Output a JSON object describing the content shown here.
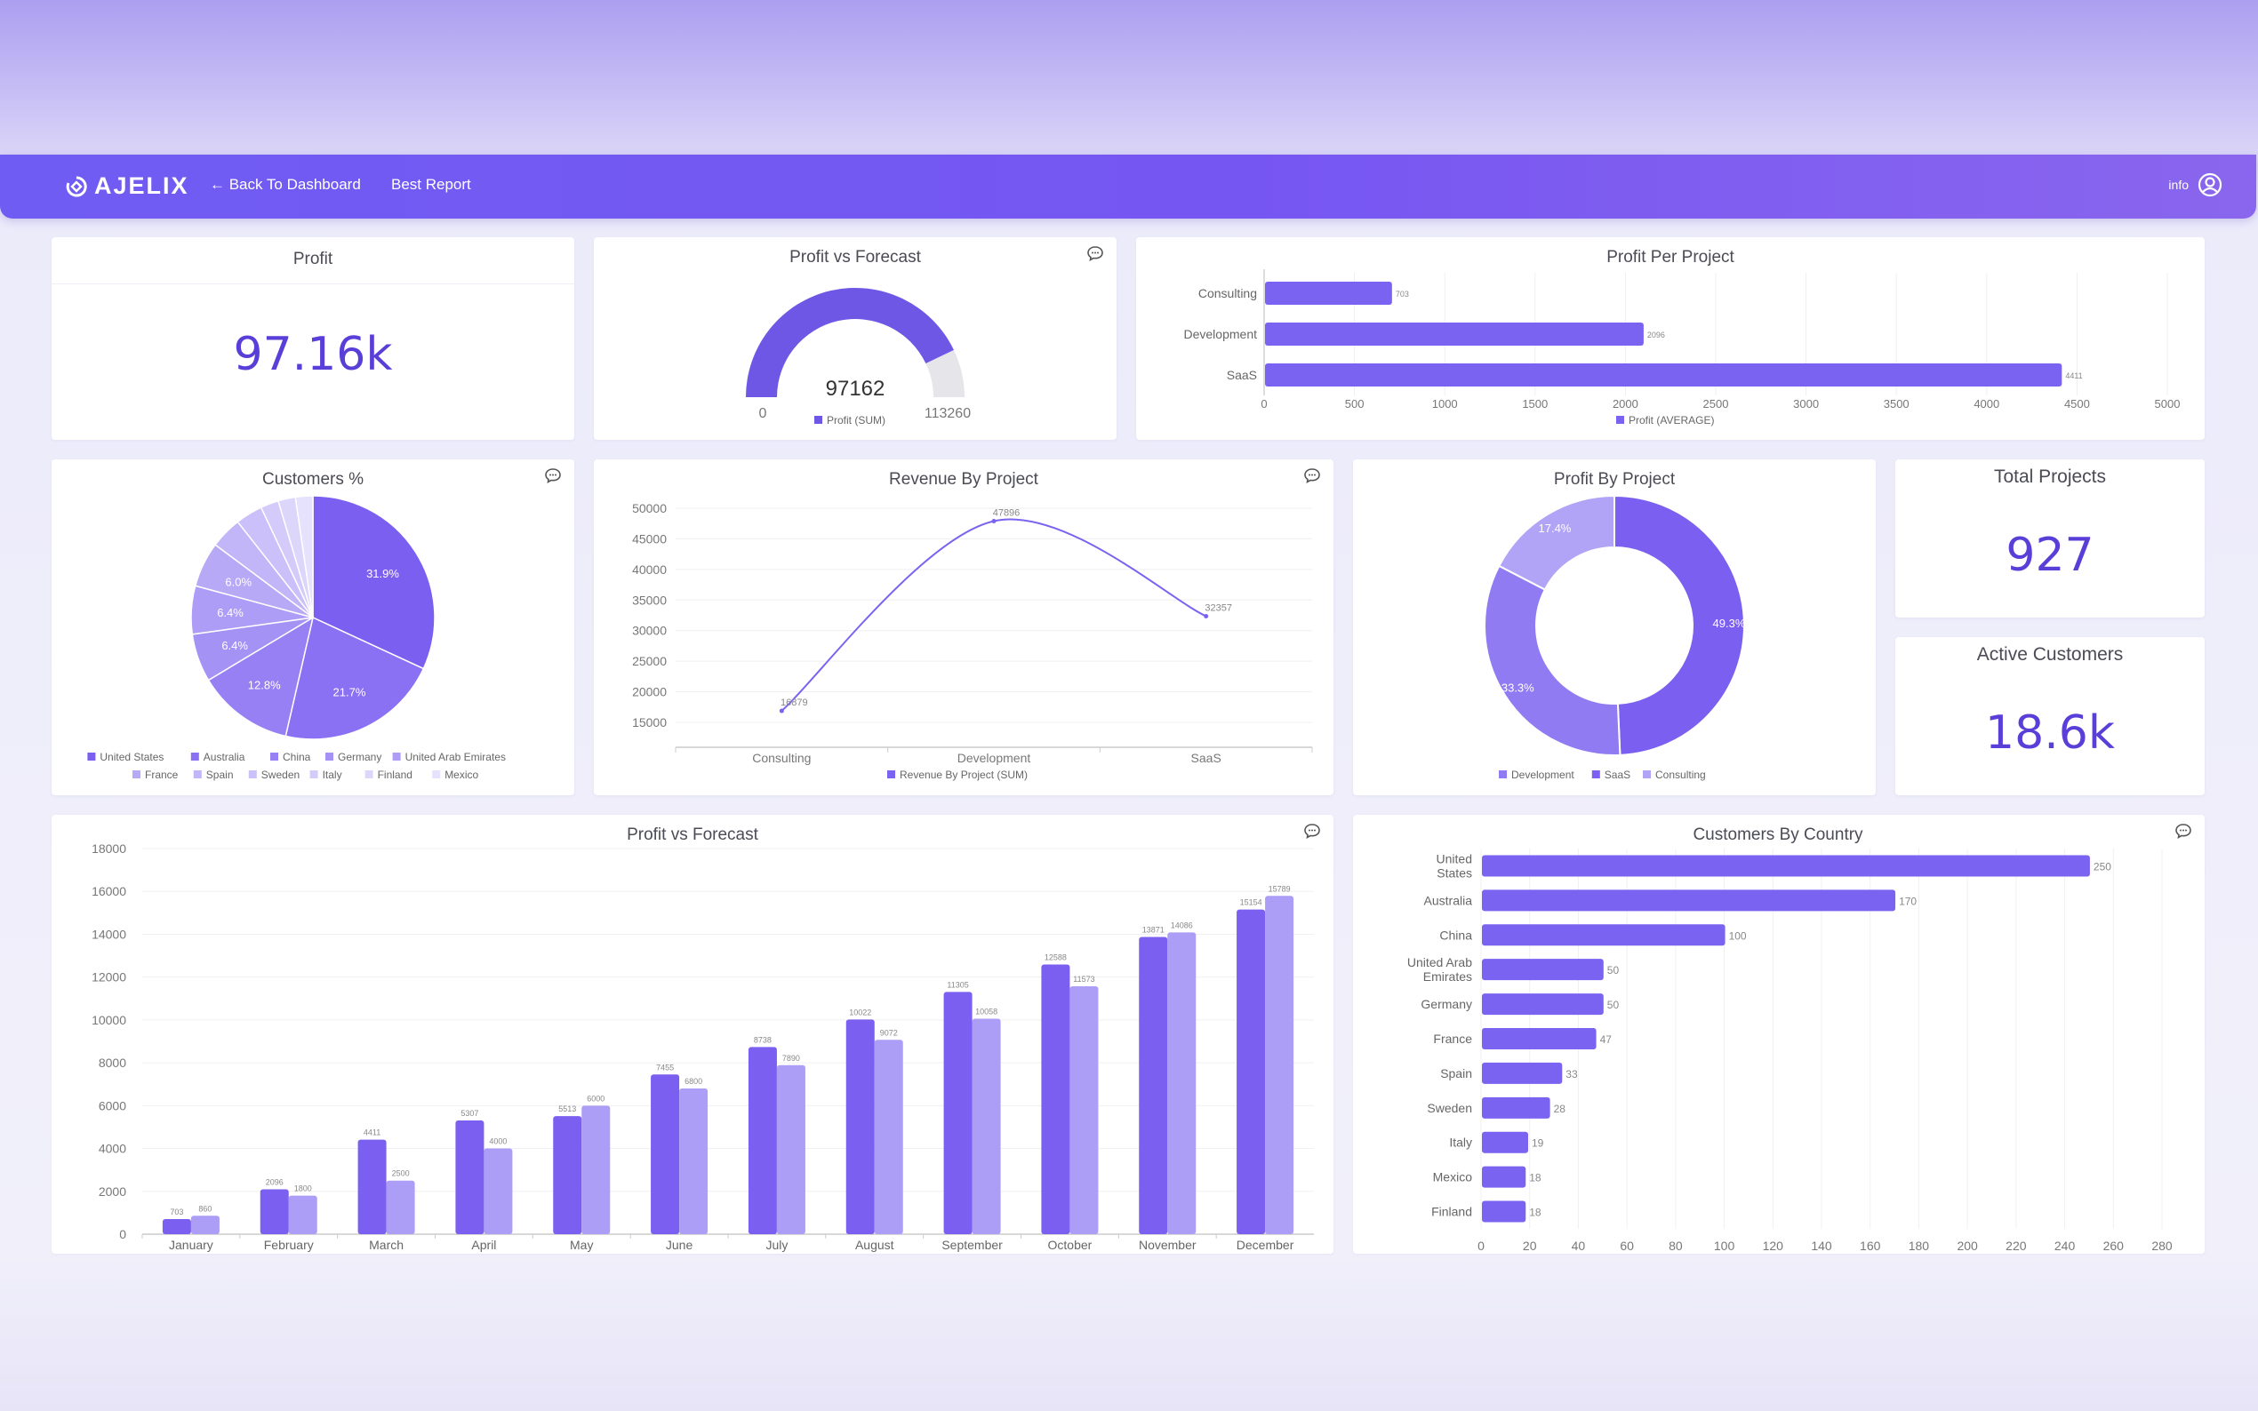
{
  "header": {
    "logo_text": "AJELIX",
    "back_label": "← Back To Dashboard",
    "report_label": "Best Report",
    "info_label": "info"
  },
  "colors": {
    "primary": "#7a63f0",
    "secondary": "#a99bf4",
    "tertiary": "#c4baf8",
    "kpi": "#5a3ed8",
    "header": "#7259f2"
  },
  "kpis": {
    "profit": {
      "title": "Profit",
      "value": "97.16k"
    },
    "total_projects": {
      "title": "Total Projects",
      "value": "927"
    },
    "active_customers": {
      "title": "Active Customers",
      "value": "18.6k"
    }
  },
  "chart_data": [
    {
      "id": "gauge",
      "type": "gauge",
      "title": "Profit vs Forecast",
      "value": 97162,
      "min": 0,
      "max": 113260,
      "value_label": "97162",
      "min_label": "0",
      "max_label": "113260",
      "legend": [
        "Profit (SUM)"
      ]
    },
    {
      "id": "profit_per_project",
      "type": "bar",
      "orientation": "horizontal",
      "title": "Profit Per Project",
      "categories": [
        "Consulting",
        "Development",
        "SaaS"
      ],
      "values": [
        703,
        2096,
        4411
      ],
      "value_labels": [
        "703",
        "2096",
        "4411"
      ],
      "xlim": [
        0,
        5000
      ],
      "ticks": [
        "0",
        "500",
        "1000",
        "1500",
        "2000",
        "2500",
        "3000",
        "3500",
        "4000",
        "4500",
        "5000"
      ],
      "legend": [
        "Profit (AVERAGE)"
      ]
    },
    {
      "id": "customers_pct",
      "type": "pie",
      "title": "Customers %",
      "categories": [
        "United States",
        "Australia",
        "China",
        "Germany",
        "United Arab Emirates",
        "France",
        "Spain",
        "Sweden",
        "Italy",
        "Finland",
        "Mexico"
      ],
      "values": [
        31.9,
        21.7,
        12.8,
        6.4,
        6.4,
        6.0,
        4.2,
        3.6,
        2.4,
        2.3,
        2.3
      ],
      "slice_labels": [
        "31.9%",
        "21.7%",
        "12.8%",
        "6.4%",
        "6.4%",
        "6.0%",
        "",
        "",
        "",
        "",
        ""
      ],
      "legend": [
        "United States",
        "Australia",
        "China",
        "Germany",
        "United Arab Emirates",
        "France",
        "Spain",
        "Sweden",
        "Italy",
        "Finland",
        "Mexico"
      ]
    },
    {
      "id": "revenue_by_project",
      "type": "line",
      "title": "Revenue By Project",
      "categories": [
        "Consulting",
        "Development",
        "SaaS"
      ],
      "values": [
        16879,
        47896,
        32357
      ],
      "value_labels": [
        "16879",
        "47896",
        "32357"
      ],
      "ylim": [
        15000,
        50000
      ],
      "yticks": [
        "50000",
        "45000",
        "40000",
        "35000",
        "30000",
        "25000",
        "20000",
        "15000"
      ],
      "legend": [
        "Revenue By Project (SUM)"
      ]
    },
    {
      "id": "profit_by_project",
      "type": "pie",
      "donut": true,
      "title": "Profit By Project",
      "categories": [
        "Development",
        "SaaS",
        "Consulting"
      ],
      "values": [
        33.3,
        49.3,
        17.4
      ],
      "slice_labels": [
        "33.3%",
        "49.3%",
        "17.4%"
      ],
      "legend": [
        "Development",
        "SaaS",
        "Consulting"
      ]
    },
    {
      "id": "profit_vs_forecast_monthly",
      "type": "bar",
      "title": "Profit vs Forecast",
      "categories": [
        "January",
        "February",
        "March",
        "April",
        "May",
        "June",
        "July",
        "August",
        "September",
        "October",
        "November",
        "December"
      ],
      "series": [
        {
          "values": [
            703,
            2096,
            4411,
            5307,
            5513,
            7455,
            8738,
            10022,
            11305,
            12588,
            13871,
            15154
          ],
          "labels": [
            "703",
            "2096",
            "4411",
            "5307",
            "5513",
            "7455",
            "8738",
            "10022",
            "11305",
            "12588",
            "13871",
            "15154"
          ]
        },
        {
          "values": [
            860,
            1800,
            2500,
            4000,
            6000,
            6800,
            7890,
            9072,
            10058,
            11573,
            14086,
            15789
          ],
          "labels": [
            "860",
            "1800",
            "2500",
            "4000",
            "6000",
            "6800",
            "7890",
            "9072",
            "10058",
            "11573",
            "14086",
            "15789"
          ]
        }
      ],
      "ylim": [
        0,
        18000
      ],
      "yticks": [
        "18000",
        "16000",
        "14000",
        "12000",
        "10000",
        "8000",
        "6000",
        "4000",
        "2000",
        "0"
      ]
    },
    {
      "id": "customers_by_country",
      "type": "bar",
      "orientation": "horizontal",
      "title": "Customers By Country",
      "categories": [
        "United States",
        "Australia",
        "China",
        "United Arab Emirates",
        "Germany",
        "France",
        "Spain",
        "Sweden",
        "Italy",
        "Mexico",
        "Finland"
      ],
      "category_lines": [
        [
          "United",
          "States"
        ],
        [
          "Australia"
        ],
        [
          "China"
        ],
        [
          "United Arab",
          "Emirates"
        ],
        [
          "Germany"
        ],
        [
          "France"
        ],
        [
          "Spain"
        ],
        [
          "Sweden"
        ],
        [
          "Italy"
        ],
        [
          "Mexico"
        ],
        [
          "Finland"
        ]
      ],
      "values": [
        250,
        170,
        100,
        50,
        50,
        47,
        33,
        28,
        19,
        18,
        18
      ],
      "value_labels": [
        "250",
        "170",
        "100",
        "50",
        "50",
        "47",
        "33",
        "28",
        "19",
        "18",
        "18"
      ],
      "xlim": [
        0,
        280
      ],
      "ticks": [
        "0",
        "20",
        "40",
        "60",
        "80",
        "100",
        "120",
        "140",
        "160",
        "180",
        "200",
        "220",
        "240",
        "260",
        "280"
      ]
    }
  ]
}
